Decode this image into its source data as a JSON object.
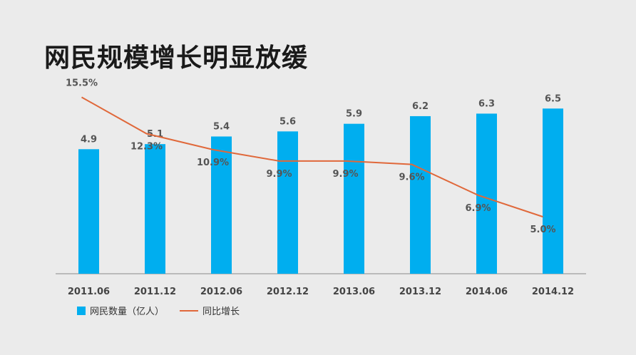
{
  "title": "网民规模增长明显放缓",
  "colors": {
    "bar": "#00aeef",
    "line": "#e0683a",
    "axis": "#888888",
    "label": "#555555"
  },
  "chart_data": {
    "type": "bar",
    "categories": [
      "2011.06",
      "2011.12",
      "2012.06",
      "2012.12",
      "2013.06",
      "2013.12",
      "2014.06",
      "2014.12"
    ],
    "series": [
      {
        "name": "网民数量（亿人）",
        "kind": "bar",
        "values": [
          4.9,
          5.1,
          5.4,
          5.6,
          5.9,
          6.2,
          6.3,
          6.5
        ],
        "labels": [
          "4.9",
          "5.1",
          "5.4",
          "5.6",
          "5.9",
          "6.2",
          "6.3",
          "6.5"
        ]
      },
      {
        "name": "同比增长",
        "kind": "line",
        "values": [
          15.5,
          12.3,
          10.9,
          9.9,
          9.9,
          9.6,
          6.9,
          5.0
        ],
        "labels": [
          "15.5%",
          "12.3%",
          "10.9%",
          "9.9%",
          "9.9%",
          "9.6%",
          "6.9%",
          "5.0%"
        ]
      }
    ],
    "ylim": [
      0,
      7
    ],
    "y2lim": [
      0,
      20
    ],
    "legend": "bottom-left"
  }
}
